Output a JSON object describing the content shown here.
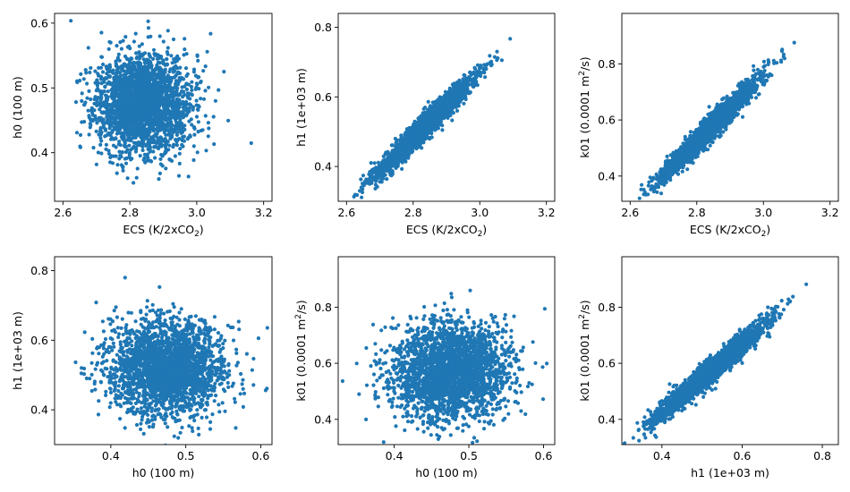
{
  "figure": {
    "point_color": "#1f77b4",
    "n_points_per_panel": 2500
  },
  "chart_data": [
    {
      "type": "scatter",
      "xlabel": "ECS (K/2xCO",
      "xlabel_sub": "2",
      "xlabel_tail": ")",
      "ylabel": "h0 (100 m)",
      "xlim": [
        2.575,
        3.225
      ],
      "ylim": [
        0.325,
        0.615
      ],
      "xticks": [
        2.6,
        2.8,
        3.0,
        3.2
      ],
      "xtick_labels": [
        "2.6",
        "2.8",
        "3.0",
        "3.2"
      ],
      "yticks": [
        0.4,
        0.5,
        0.6
      ],
      "ytick_labels": [
        "0.4",
        "0.5",
        "0.6"
      ],
      "x_mean": 2.84,
      "x_sd": 0.07,
      "y_mean": 0.475,
      "y_sd": 0.038,
      "correlation": 0.0,
      "seed": 11
    },
    {
      "type": "scatter",
      "xlabel": "ECS (K/2xCO",
      "xlabel_sub": "2",
      "xlabel_tail": ")",
      "ylabel": "h1 (1e+03 m)",
      "xlim": [
        2.575,
        3.225
      ],
      "ylim": [
        0.3,
        0.84
      ],
      "xticks": [
        2.6,
        2.8,
        3.0,
        3.2
      ],
      "xtick_labels": [
        "2.6",
        "2.8",
        "3.0",
        "3.2"
      ],
      "yticks": [
        0.4,
        0.6,
        0.8
      ],
      "ytick_labels": [
        "0.4",
        "0.6",
        "0.8"
      ],
      "x_mean": 2.84,
      "x_sd": 0.07,
      "y_mean": 0.52,
      "y_sd": 0.068,
      "correlation": 0.97,
      "seed": 22
    },
    {
      "type": "scatter",
      "xlabel": "ECS (K/2xCO",
      "xlabel_sub": "2",
      "xlabel_tail": ")",
      "ylabel": "k01 (0.0001 m",
      "ylabel_sup": "2",
      "ylabel_tail": "/s)",
      "xlim": [
        2.575,
        3.225
      ],
      "ylim": [
        0.31,
        0.98
      ],
      "xticks": [
        2.6,
        2.8,
        3.0,
        3.2
      ],
      "xtick_labels": [
        "2.6",
        "2.8",
        "3.0",
        "3.2"
      ],
      "yticks": [
        0.4,
        0.6,
        0.8
      ],
      "ytick_labels": [
        "0.4",
        "0.6",
        "0.8"
      ],
      "x_mean": 2.84,
      "x_sd": 0.07,
      "y_mean": 0.57,
      "y_sd": 0.085,
      "correlation": 0.97,
      "seed": 33
    },
    {
      "type": "scatter",
      "xlabel": "h0 (100 m)",
      "xlabel_sub": "",
      "xlabel_tail": "",
      "ylabel": "h1 (1e+03 m)",
      "xlim": [
        0.325,
        0.615
      ],
      "ylim": [
        0.3,
        0.84
      ],
      "xticks": [
        0.4,
        0.5,
        0.6
      ],
      "xtick_labels": [
        "0.4",
        "0.5",
        "0.6"
      ],
      "yticks": [
        0.4,
        0.6,
        0.8
      ],
      "ytick_labels": [
        "0.4",
        "0.6",
        "0.8"
      ],
      "x_mean": 0.475,
      "x_sd": 0.038,
      "y_mean": 0.52,
      "y_sd": 0.068,
      "correlation": 0.0,
      "seed": 44
    },
    {
      "type": "scatter",
      "xlabel": "h0 (100 m)",
      "xlabel_sub": "",
      "xlabel_tail": "",
      "ylabel": "k01 (0.0001 m",
      "ylabel_sup": "2",
      "ylabel_tail": "/s)",
      "xlim": [
        0.325,
        0.615
      ],
      "ylim": [
        0.31,
        0.98
      ],
      "xticks": [
        0.4,
        0.5,
        0.6
      ],
      "xtick_labels": [
        "0.4",
        "0.5",
        "0.6"
      ],
      "yticks": [
        0.4,
        0.6,
        0.8
      ],
      "ytick_labels": [
        "0.4",
        "0.6",
        "0.8"
      ],
      "x_mean": 0.475,
      "x_sd": 0.038,
      "y_mean": 0.57,
      "y_sd": 0.085,
      "correlation": 0.0,
      "seed": 55
    },
    {
      "type": "scatter",
      "xlabel": "h1 (1e+03 m)",
      "xlabel_sub": "",
      "xlabel_tail": "",
      "ylabel": "k01 (0.0001 m",
      "ylabel_sup": "2",
      "ylabel_tail": "/s)",
      "xlim": [
        0.3,
        0.84
      ],
      "ylim": [
        0.31,
        0.98
      ],
      "xticks": [
        0.4,
        0.6,
        0.8
      ],
      "xtick_labels": [
        "0.4",
        "0.6",
        "0.8"
      ],
      "yticks": [
        0.4,
        0.6,
        0.8
      ],
      "ytick_labels": [
        "0.4",
        "0.6",
        "0.8"
      ],
      "x_mean": 0.52,
      "x_sd": 0.068,
      "y_mean": 0.57,
      "y_sd": 0.085,
      "correlation": 0.97,
      "seed": 66
    }
  ]
}
